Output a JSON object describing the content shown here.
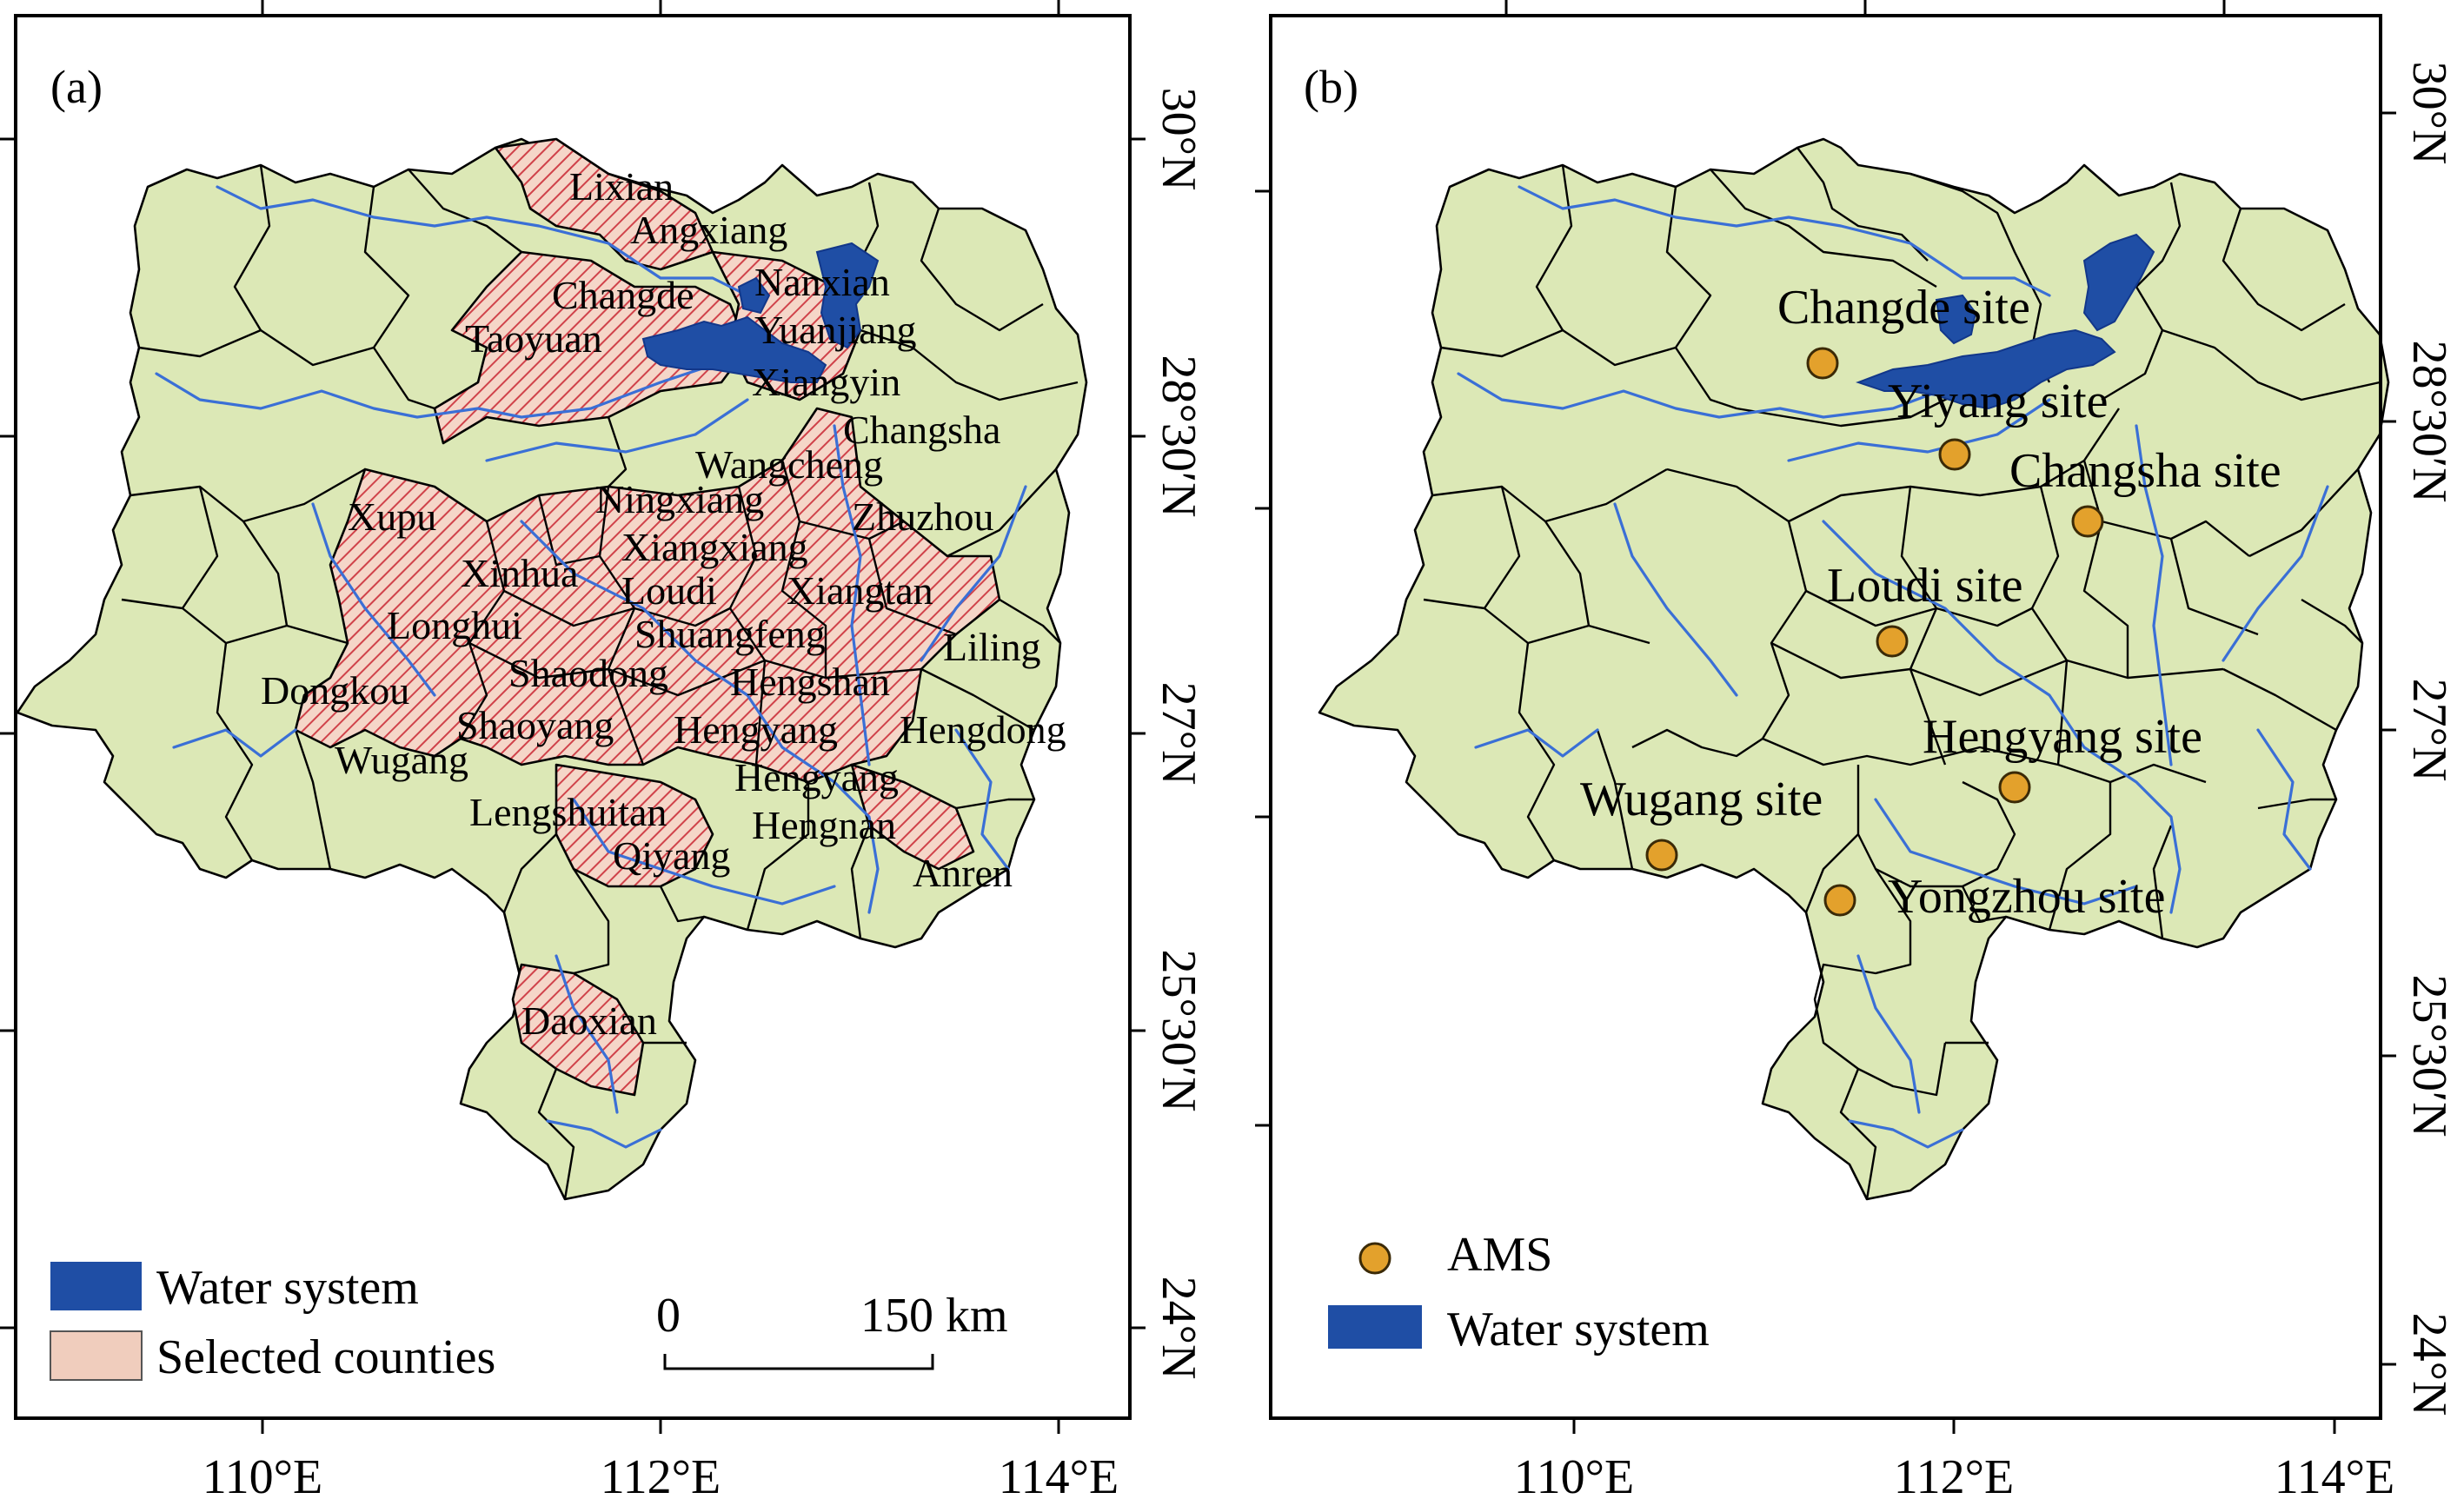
{
  "panel_a": {
    "tag": "(a)",
    "counties": [
      "Lixian",
      "Angxiang",
      "Changde",
      "Nanxian",
      "Taoyuan",
      "Yuanjiang",
      "Xiangyin",
      "Changsha",
      "Wangcheng",
      "Xupu",
      "Ningxiang",
      "Zhuzhou",
      "Xiangxiang",
      "Xinhua",
      "Loudi",
      "Xiangtan",
      "Longhui",
      "Shuangfeng",
      "Liling",
      "Dongkou",
      "Shaodong",
      "Hengshan",
      "Shaoyang",
      "Hengyang",
      "Hengdong",
      "Wugang",
      "Hengyang",
      "Lengshuitan",
      "Hengnan",
      "Qiyang",
      "Anren",
      "Daoxian"
    ],
    "legend": {
      "water": "Water system",
      "selected": "Selected counties"
    },
    "scalebar": {
      "zero": "0",
      "end": "150 km"
    },
    "x_ticks": [
      "110°E",
      "112°E",
      "114°E"
    ],
    "y_ticks": [
      "30°N",
      "28°30′N",
      "27°N",
      "25°30′N",
      "24°N"
    ]
  },
  "panel_b": {
    "tag": "(b)",
    "sites": [
      "Changde site",
      "Yiyang site",
      "Changsha site",
      "Loudi site",
      "Hengyang site",
      "Wugang site",
      "Yongzhou site"
    ],
    "legend": {
      "ams": "AMS",
      "water": "Water system"
    },
    "x_ticks": [
      "110°E",
      "112°E",
      "114°E"
    ],
    "y_ticks": [
      "30°N",
      "28°30′N",
      "27°N",
      "25°30′N",
      "24°N"
    ]
  },
  "colors": {
    "land": "#dce8b6",
    "selected_fill": "#f5d6c8",
    "selected_hatch": "#d0424a",
    "water": "#1f4ea5",
    "river": "#3a6fd6",
    "ams_marker": "#e3a12c"
  }
}
